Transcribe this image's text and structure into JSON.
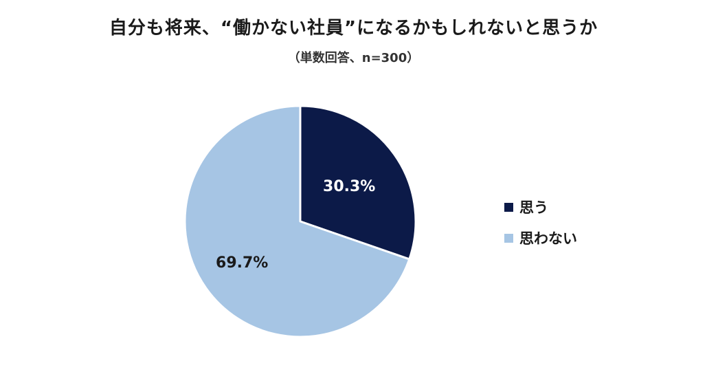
{
  "chart_data": {
    "type": "pie",
    "title": "自分も将来、“働かない社員”になるかもしれないと思うか",
    "subtitle": "（単数回答、n=300）",
    "slices": [
      {
        "label": "思う",
        "value": 30.3,
        "value_label": "30.3%",
        "color": "#0c1a48",
        "label_color": "#ffffff"
      },
      {
        "label": "思わない",
        "value": 69.7,
        "value_label": "69.7%",
        "color": "#a6c5e4",
        "label_color": "#1a1a1a"
      }
    ],
    "start": "12 o'clock",
    "direction": "clockwise",
    "legend_position": "right"
  }
}
